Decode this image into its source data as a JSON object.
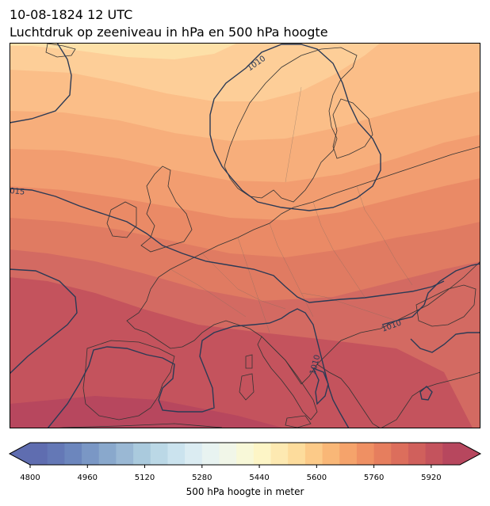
{
  "title": {
    "line1": "10-08-1824 12 UTC",
    "line2": "Luchtdruk op zeeniveau in hPa en 500 hPa hoogte"
  },
  "map": {
    "isobar_labels": [
      "1010",
      "015",
      "1010",
      "1010"
    ],
    "colors": {
      "land_outline": "#333333",
      "isobar": "#2b3a55"
    }
  },
  "colorbar": {
    "title": "500 hPa hoogte in meter",
    "tick_labels": [
      "4800",
      "4960",
      "5120",
      "5280",
      "5440",
      "5600",
      "5760",
      "5920"
    ],
    "min": 4800,
    "max": 6000,
    "step": 40,
    "colors": [
      "#5f6db0",
      "#6478b6",
      "#6c86bd",
      "#7a97c5",
      "#89a8cc",
      "#9ab8d4",
      "#aacadd",
      "#bbd8e6",
      "#cbe3ee",
      "#dbecf2",
      "#e8f3f1",
      "#f1f6e8",
      "#f8f8d8",
      "#fdf5c6",
      "#fde9b1",
      "#fddc9c",
      "#fcca88",
      "#f9b777",
      "#f5a36b",
      "#ef9063",
      "#e67e5e",
      "#dc6e5c",
      "#d0605c",
      "#c4535d",
      "#b7475e"
    ]
  }
}
